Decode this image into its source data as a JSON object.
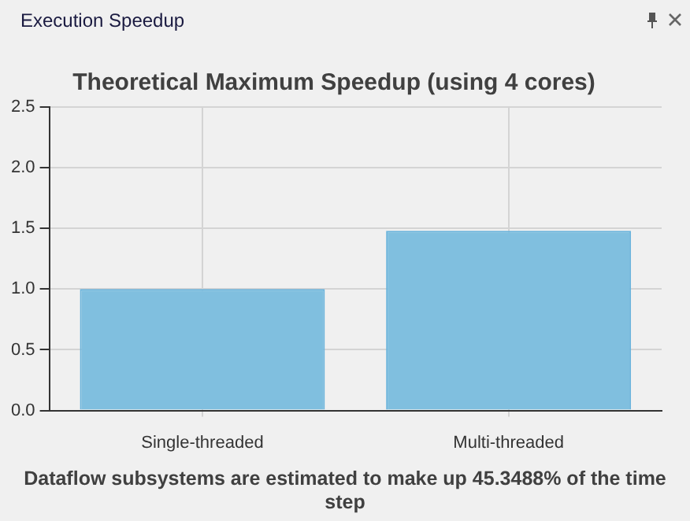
{
  "chart_data": {
    "type": "bar",
    "title": "Theoretical Maximum Speedup (using 4 cores)",
    "categories": [
      "Single-threaded",
      "Multi-threaded"
    ],
    "values": [
      1.0,
      1.48
    ],
    "color": "#80bfdf",
    "ylim": [
      0,
      2.5
    ],
    "yticks": [
      {
        "value": 0,
        "label": "0.0"
      },
      {
        "value": 0.5,
        "label": "0.5"
      },
      {
        "value": 1,
        "label": "1.0"
      },
      {
        "value": 1.5,
        "label": "1.5"
      },
      {
        "value": 2,
        "label": "2.0"
      },
      {
        "value": 2.5,
        "label": "2.5"
      }
    ],
    "grid": true,
    "annotations": [
      "Execution Speedup",
      "Dataflow subsystems are estimated to make up 45.3488% of the time step"
    ]
  }
}
